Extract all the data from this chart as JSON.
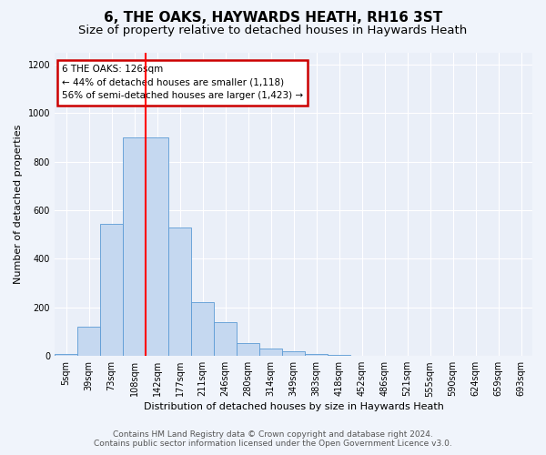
{
  "title": "6, THE OAKS, HAYWARDS HEATH, RH16 3ST",
  "subtitle": "Size of property relative to detached houses in Haywards Heath",
  "xlabel": "Distribution of detached houses by size in Haywards Heath",
  "ylabel": "Number of detached properties",
  "footer_line1": "Contains HM Land Registry data © Crown copyright and database right 2024.",
  "footer_line2": "Contains public sector information licensed under the Open Government Licence v3.0.",
  "bar_labels": [
    "5sqm",
    "39sqm",
    "73sqm",
    "108sqm",
    "142sqm",
    "177sqm",
    "211sqm",
    "246sqm",
    "280sqm",
    "314sqm",
    "349sqm",
    "383sqm",
    "418sqm",
    "452sqm",
    "486sqm",
    "521sqm",
    "555sqm",
    "590sqm",
    "624sqm",
    "659sqm",
    "693sqm"
  ],
  "bar_values": [
    10,
    120,
    545,
    900,
    900,
    530,
    220,
    140,
    55,
    32,
    20,
    10,
    5,
    0,
    0,
    0,
    0,
    0,
    0,
    0,
    0
  ],
  "bar_color": "#c5d8f0",
  "bar_edge_color": "#5b9bd5",
  "red_line_x": 3.5,
  "property_label": "6 THE OAKS: 126sqm",
  "annotation_line1": "← 44% of detached houses are smaller (1,118)",
  "annotation_line2": "56% of semi-detached houses are larger (1,423) →",
  "box_edge_color": "#cc0000",
  "ylim": [
    0,
    1250
  ],
  "yticks": [
    0,
    200,
    400,
    600,
    800,
    1000,
    1200
  ],
  "bg_color": "#eaeff8",
  "grid_color": "#ffffff",
  "title_fontsize": 11,
  "subtitle_fontsize": 9.5,
  "axis_label_fontsize": 8,
  "tick_fontsize": 7,
  "annotation_fontsize": 7.5,
  "footer_fontsize": 6.5
}
